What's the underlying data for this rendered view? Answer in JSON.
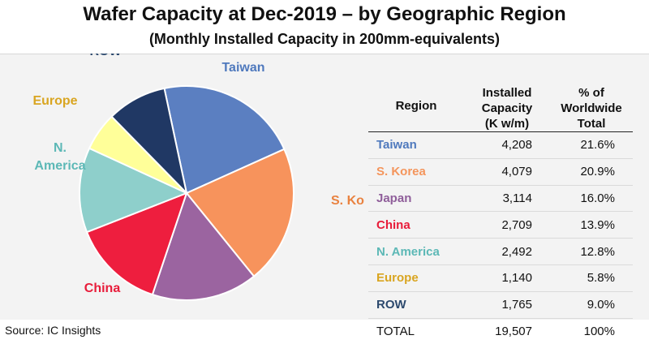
{
  "title": "Wafer Capacity at Dec-2019 – by Geographic Region",
  "subtitle": "(Monthly Installed Capacity in 200mm-equivalents)",
  "source": "Source:  IC Insights",
  "table": {
    "headers": {
      "region": "Region",
      "capacity": [
        "Installed",
        "Capacity",
        "(K w/m)"
      ],
      "pct": [
        "% of",
        "Worldwide",
        "Total"
      ]
    },
    "rows": [
      {
        "region": "Taiwan",
        "capacity": "4,208",
        "pct": "21.6%",
        "color": "#4f79bd"
      },
      {
        "region": "S. Korea",
        "capacity": "4,079",
        "pct": "20.9%",
        "color": "#f4955c"
      },
      {
        "region": "Japan",
        "capacity": "3,114",
        "pct": "16.0%",
        "color": "#8f5e9a"
      },
      {
        "region": "China",
        "capacity": "2,709",
        "pct": "13.9%",
        "color": "#e81c3a"
      },
      {
        "region": "N. America",
        "capacity": "2,492",
        "pct": "12.8%",
        "color": "#5cb8b6"
      },
      {
        "region": "Europe",
        "capacity": "1,140",
        "pct": "5.8%",
        "color": "#d9a521"
      },
      {
        "region": "ROW",
        "capacity": "1,765",
        "pct": "9.0%",
        "color": "#2d4a6e"
      }
    ],
    "total": {
      "region": "TOTAL",
      "capacity": "19,507",
      "pct": "100%"
    }
  },
  "chart_data": {
    "type": "pie",
    "categories": [
      "Taiwan",
      "S. Korea",
      "Japan",
      "China",
      "N. America",
      "Europe",
      "ROW"
    ],
    "values": [
      21.6,
      20.9,
      16.0,
      13.9,
      12.8,
      5.8,
      9.0
    ],
    "labels": [
      "Taiwan",
      "S. Korea",
      "Japan",
      "China",
      "N.\nAmerica",
      "Europe",
      "ROW"
    ],
    "colors": [
      "#5b7fc1",
      "#f7935c",
      "#9b64a0",
      "#ee1e3e",
      "#8ecfcb",
      "#ffff99",
      "#203864"
    ],
    "label_colors": [
      "#4f79bd",
      "#e98240",
      "#8f5e9a",
      "#e81c3a",
      "#5cb8b6",
      "#d9a521",
      "#2d4a6e"
    ]
  }
}
